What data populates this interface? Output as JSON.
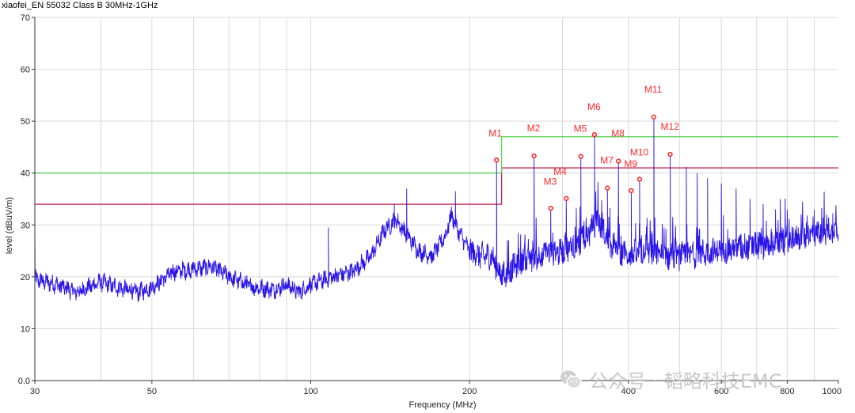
{
  "chart_data": {
    "type": "line",
    "title": "xiaofei_EN 55032 Class B 30MHz-1GHz",
    "xlabel": "Frequency (MHz)",
    "ylabel": "level (dBuV/m)",
    "x_scale": "log",
    "xlim": [
      30,
      1000
    ],
    "ylim": [
      0,
      70
    ],
    "x_ticks": [
      30,
      50,
      100,
      200,
      400,
      600,
      800,
      1000
    ],
    "x_tick_labels": [
      "30",
      "50",
      "100",
      "200",
      "400",
      "600",
      "800",
      "1000"
    ],
    "y_ticks": [
      0,
      10,
      20,
      30,
      40,
      50,
      60,
      70
    ],
    "y_tick_labels": [
      "0.0",
      "10",
      "20",
      "30",
      "40",
      "50",
      "60",
      "70"
    ],
    "grid": true,
    "series": [
      {
        "role": "limit-quasi-peak",
        "color": "#c0204a",
        "points": [
          [
            30,
            34
          ],
          [
            230,
            34
          ],
          [
            230,
            41
          ],
          [
            1000,
            41
          ]
        ]
      },
      {
        "role": "limit-average",
        "color": "#5ad45a",
        "points": [
          [
            30,
            40
          ],
          [
            230,
            40
          ],
          [
            230,
            47
          ],
          [
            1000,
            47
          ]
        ]
      },
      {
        "role": "measured-spectrum",
        "color": "#2a14e6",
        "baseline": [
          [
            30,
            19.5
          ],
          [
            33,
            18.5
          ],
          [
            36,
            17
          ],
          [
            40,
            19
          ],
          [
            43,
            18
          ],
          [
            47,
            17
          ],
          [
            50,
            18
          ],
          [
            55,
            21
          ],
          [
            60,
            21.5
          ],
          [
            65,
            22
          ],
          [
            70,
            20
          ],
          [
            78,
            18
          ],
          [
            85,
            17.5
          ],
          [
            90,
            18.5
          ],
          [
            95,
            17
          ],
          [
            100,
            18.5
          ],
          [
            110,
            20
          ],
          [
            120,
            21
          ],
          [
            130,
            24
          ],
          [
            138,
            29
          ],
          [
            145,
            31
          ],
          [
            150,
            29
          ],
          [
            160,
            25
          ],
          [
            170,
            24
          ],
          [
            180,
            28
          ],
          [
            185,
            32
          ],
          [
            190,
            29
          ],
          [
            200,
            25
          ],
          [
            210,
            24
          ],
          [
            220,
            24
          ],
          [
            230,
            20
          ],
          [
            250,
            23
          ],
          [
            270,
            24
          ],
          [
            300,
            25
          ],
          [
            330,
            27
          ],
          [
            350,
            31
          ],
          [
            370,
            26
          ],
          [
            400,
            24
          ],
          [
            430,
            25
          ],
          [
            460,
            24
          ],
          [
            500,
            24
          ],
          [
            600,
            25
          ],
          [
            700,
            26
          ],
          [
            800,
            27
          ],
          [
            900,
            28.5
          ],
          [
            1000,
            29
          ]
        ],
        "spikes": [
          [
            108,
            29.5
          ],
          [
            144,
            34
          ],
          [
            152,
            37
          ],
          [
            188,
            36.5
          ],
          [
            225,
            42.5
          ],
          [
            265,
            43.3
          ],
          [
            285,
            33.2
          ],
          [
            305,
            35.1
          ],
          [
            325,
            43.2
          ],
          [
            345,
            47.4
          ],
          [
            365,
            37.1
          ],
          [
            383,
            42.3
          ],
          [
            405,
            36.6
          ],
          [
            420,
            38.8
          ],
          [
            447,
            50.8
          ],
          [
            480,
            43.6
          ],
          [
            515,
            41.2
          ],
          [
            540,
            40
          ],
          [
            565,
            39
          ],
          [
            600,
            38
          ],
          [
            640,
            37
          ],
          [
            680,
            35
          ],
          [
            720,
            34
          ],
          [
            760,
            33
          ],
          [
            800,
            33
          ],
          [
            850,
            32
          ],
          [
            900,
            33
          ],
          [
            950,
            32
          ]
        ]
      }
    ],
    "markers": [
      {
        "label": "M1",
        "freq": 225,
        "level": 42.5
      },
      {
        "label": "M2",
        "freq": 265,
        "level": 43.3
      },
      {
        "label": "M3",
        "freq": 285,
        "level": 33.2
      },
      {
        "label": "M4",
        "freq": 305,
        "level": 35.1
      },
      {
        "label": "M5",
        "freq": 325,
        "level": 43.2
      },
      {
        "label": "M6",
        "freq": 345,
        "level": 47.4
      },
      {
        "label": "M7",
        "freq": 365,
        "level": 37.1
      },
      {
        "label": "M8",
        "freq": 383,
        "level": 42.3
      },
      {
        "label": "M9",
        "freq": 405,
        "level": 36.6
      },
      {
        "label": "M10",
        "freq": 420,
        "level": 38.8
      },
      {
        "label": "M11",
        "freq": 447,
        "level": 50.8
      },
      {
        "label": "M12",
        "freq": 480,
        "level": 43.6
      }
    ],
    "marker_color": "#ff2a2a"
  },
  "watermark": {
    "text": "公众号 · 韬略科技EMC",
    "icon": "wechat-icon"
  }
}
